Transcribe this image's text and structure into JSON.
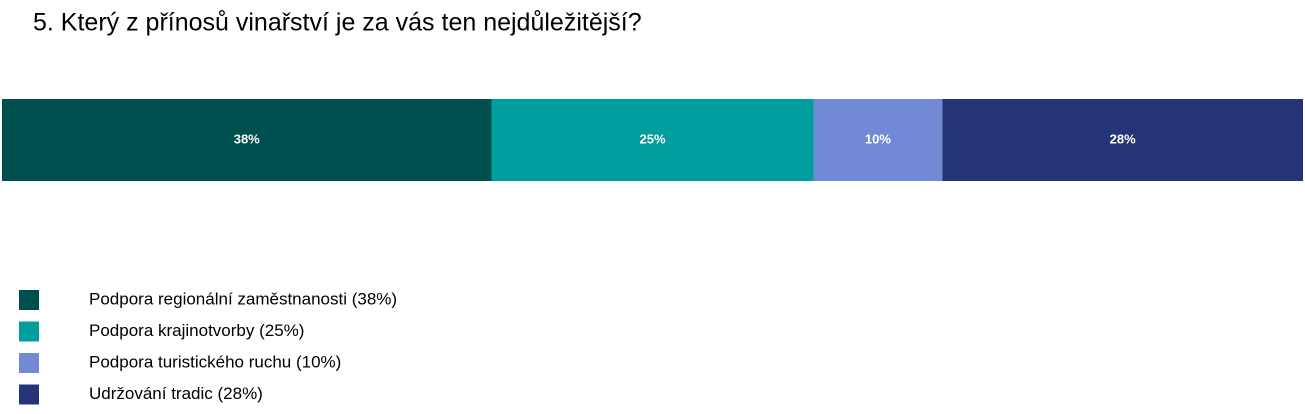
{
  "chart_data": {
    "type": "bar",
    "stacked": true,
    "orientation": "horizontal",
    "title": "5. Který z přínosů vinařství je za vás ten nejdůležitější?",
    "categories": [
      null
    ],
    "series": [
      {
        "name": "Podpora regionální zaměstnanosti (38%)",
        "color": "#004f4f",
        "values": [
          38
        ],
        "value_labels": [
          "38%"
        ]
      },
      {
        "name": "Podpora krajinotvorby (25%)",
        "color": "#009e9c",
        "values": [
          25
        ],
        "value_labels": [
          "25%"
        ]
      },
      {
        "name": "Podpora turistického ruchu (10%)",
        "color": "#7289d6",
        "values": [
          10
        ],
        "value_labels": [
          "10%"
        ]
      },
      {
        "name": "Udržování tradic (28%)",
        "color": "#253477",
        "values": [
          28
        ],
        "value_labels": [
          "28%"
        ]
      }
    ],
    "legend": "bottom-left"
  }
}
